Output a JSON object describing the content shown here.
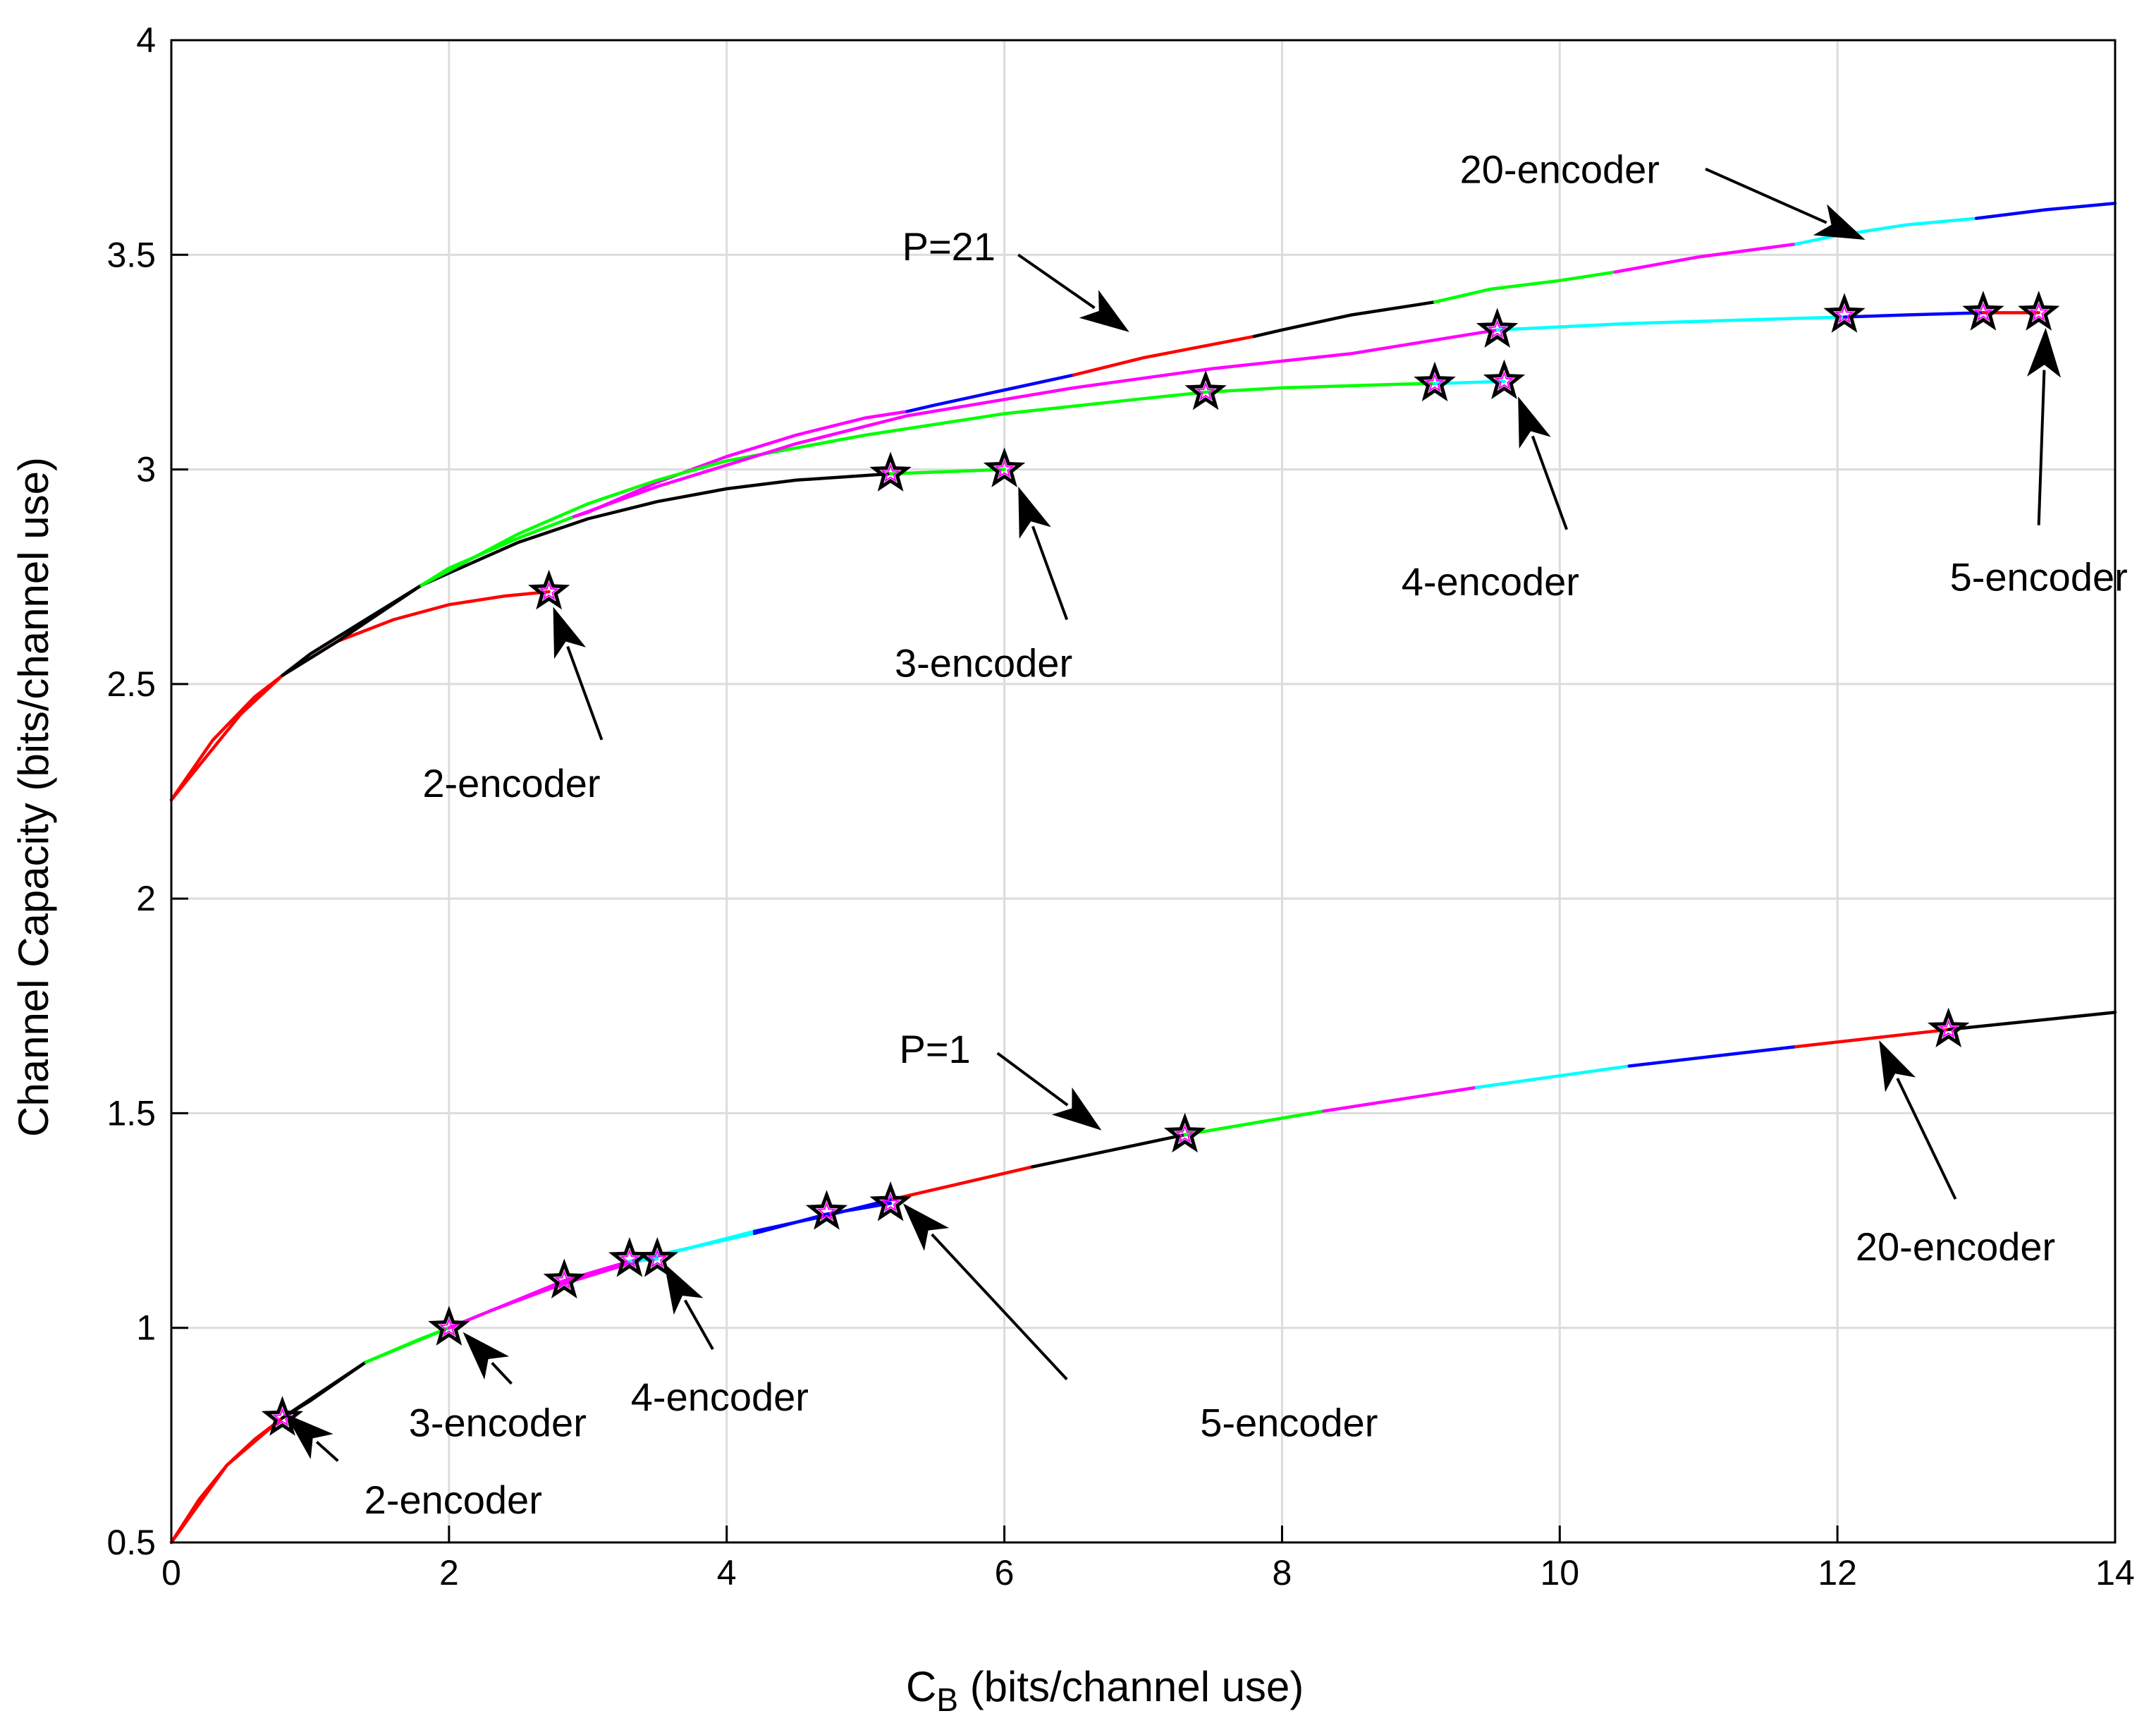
{
  "chart_data": {
    "type": "line",
    "xlabel": "C_B (bits/channel use)",
    "xlabel_main": "C",
    "xlabel_sub": "B",
    "xlabel_rest": " (bits/channel use)",
    "ylabel": "Channel Capacity (bits/channel use)",
    "xlim": [
      0,
      14
    ],
    "ylim": [
      0.5,
      4
    ],
    "xticks": [
      0,
      2,
      4,
      6,
      8,
      10,
      12,
      14
    ],
    "yticks": [
      0.5,
      1,
      1.5,
      2,
      2.5,
      3,
      3.5,
      4
    ],
    "xtick_labels": [
      "0",
      "2",
      "4",
      "6",
      "8",
      "10",
      "12",
      "14"
    ],
    "ytick_labels": [
      "0.5",
      "1",
      "1.5",
      "2",
      "2.5",
      "3",
      "3.5",
      "4"
    ],
    "grid": true,
    "colors": {
      "red": "#ff0000",
      "black": "#000000",
      "green": "#00ff00",
      "magenta": "#ff00ff",
      "cyan": "#00ffff",
      "blue": "#0000ff"
    },
    "groups": [
      {
        "name": "P=21",
        "envelope": {
          "name": "20-encoder envelope (P=21)",
          "x": [
            0,
            0.5,
            0.8,
            1.0,
            1.5,
            1.8,
            2.0,
            2.5,
            2.9,
            3.0,
            3.5,
            4.0,
            4.5,
            5.0,
            5.3,
            5.5,
            6.0,
            6.5,
            7.0,
            7.8,
            8.0,
            8.5,
            9.0,
            9.1,
            9.5,
            10.0,
            10.4,
            11.0,
            11.7,
            12.0,
            12.5,
            13.0,
            13.5,
            14.0
          ],
          "y": [
            2.23,
            2.43,
            2.52,
            2.57,
            2.67,
            2.73,
            2.77,
            2.84,
            2.89,
            2.9,
            2.97,
            3.03,
            3.08,
            3.12,
            3.135,
            3.15,
            3.185,
            3.22,
            3.26,
            3.31,
            3.325,
            3.36,
            3.385,
            3.39,
            3.42,
            3.44,
            3.46,
            3.495,
            3.525,
            3.545,
            3.57,
            3.585,
            3.605,
            3.62
          ],
          "segments": [
            {
              "color": "red",
              "x_end": 0.8
            },
            {
              "color": "black",
              "x_end": 1.8
            },
            {
              "color": "green",
              "x_end": 2.9
            },
            {
              "color": "magenta",
              "x_end": 5.3
            },
            {
              "color": "blue",
              "x_end": 6.5
            },
            {
              "color": "red",
              "x_end": 7.8
            },
            {
              "color": "black",
              "x_end": 9.1
            },
            {
              "color": "green",
              "x_end": 10.4
            },
            {
              "color": "magenta",
              "x_end": 11.7
            },
            {
              "color": "cyan",
              "x_end": 13.0
            },
            {
              "color": "blue",
              "x_end": 14.0
            }
          ]
        },
        "series": [
          {
            "name": "2-encoder (P=21)",
            "x": [
              0,
              0.3,
              0.6,
              0.8,
              1.2,
              1.6,
              2.0,
              2.4,
              2.72
            ],
            "y": [
              2.23,
              2.37,
              2.47,
              2.52,
              2.6,
              2.65,
              2.685,
              2.705,
              2.715
            ],
            "segments": [
              {
                "color": "red",
                "x_end": 2.72
              }
            ],
            "star": {
              "x": 2.72,
              "y": 2.715
            }
          },
          {
            "name": "3-encoder (P=21)",
            "x": [
              0.8,
              1.2,
              1.8,
              2.5,
              3.0,
              3.5,
              4.0,
              4.5,
              5.18,
              5.6,
              6.0
            ],
            "y": [
              2.52,
              2.6,
              2.73,
              2.83,
              2.885,
              2.925,
              2.955,
              2.975,
              2.99,
              2.995,
              3.0
            ],
            "segments": [
              {
                "color": "black",
                "x_end": 5.18
              },
              {
                "color": "green",
                "x_end": 6.0
              }
            ],
            "star": {
              "x": 6.0,
              "y": 3.0
            }
          },
          {
            "name": "4-encoder (P=21)",
            "x": [
              1.8,
              2.5,
              3.0,
              3.5,
              4.0,
              5.0,
              6.0,
              7.0,
              7.45,
              8.0,
              9.0,
              9.1,
              9.6
            ],
            "y": [
              2.73,
              2.85,
              2.92,
              2.975,
              3.02,
              3.08,
              3.13,
              3.165,
              3.18,
              3.19,
              3.2,
              3.2,
              3.205
            ],
            "segments": [
              {
                "color": "green",
                "x_end": 9.1
              },
              {
                "color": "cyan",
                "x_end": 9.6
              }
            ],
            "star": {
              "x": 9.6,
              "y": 3.205
            }
          },
          {
            "name": "5-encoder (P=21)",
            "x": [
              2.9,
              3.5,
              4.5,
              5.3,
              6.5,
              7.5,
              8.5,
              9.55,
              10.5,
              11.5,
              12.05,
              12.5,
              13.05,
              13.45
            ],
            "y": [
              2.89,
              2.96,
              3.06,
              3.125,
              3.19,
              3.235,
              3.27,
              3.325,
              3.34,
              3.35,
              3.355,
              3.36,
              3.365,
              3.365
            ],
            "segments": [
              {
                "color": "magenta",
                "x_end": 9.55
              },
              {
                "color": "cyan",
                "x_end": 12.05
              },
              {
                "color": "blue",
                "x_end": 13.05
              },
              {
                "color": "red",
                "x_end": 13.45
              }
            ],
            "star": {
              "x": 13.45,
              "y": 3.365
            }
          }
        ],
        "intermediate_stars": [
          {
            "x": 5.18,
            "y": 2.99
          },
          {
            "x": 7.45,
            "y": 3.18
          },
          {
            "x": 9.1,
            "y": 3.2
          },
          {
            "x": 9.55,
            "y": 3.325
          },
          {
            "x": 12.05,
            "y": 3.36
          },
          {
            "x": 13.05,
            "y": 3.365
          }
        ]
      },
      {
        "name": "P=1",
        "envelope": {
          "name": "20-encoder envelope (P=1)",
          "x": [
            0,
            0.2,
            0.4,
            0.6,
            0.8,
            1.0,
            1.4,
            1.8,
            2.0,
            2.3,
            2.8,
            3.3,
            3.6,
            4.2,
            4.7,
            5.2,
            6.2,
            7.3,
            8.3,
            9.4,
            10.5,
            11.7,
            12.8,
            14.0
          ],
          "y": [
            0.5,
            0.6,
            0.68,
            0.74,
            0.79,
            0.83,
            0.92,
            0.975,
            1.0,
            1.04,
            1.1,
            1.15,
            1.175,
            1.225,
            1.26,
            1.3,
            1.375,
            1.45,
            1.505,
            1.56,
            1.61,
            1.655,
            1.695,
            1.735
          ],
          "segments": [
            {
              "color": "red",
              "x_end": 0.8
            },
            {
              "color": "black",
              "x_end": 1.4
            },
            {
              "color": "green",
              "x_end": 2.3
            },
            {
              "color": "magenta",
              "x_end": 3.6
            },
            {
              "color": "cyan",
              "x_end": 4.2
            },
            {
              "color": "blue",
              "x_end": 5.2
            },
            {
              "color": "red",
              "x_end": 6.2
            },
            {
              "color": "black",
              "x_end": 7.3
            },
            {
              "color": "green",
              "x_end": 8.3
            },
            {
              "color": "magenta",
              "x_end": 9.4
            },
            {
              "color": "cyan",
              "x_end": 10.5
            },
            {
              "color": "blue",
              "x_end": 11.7
            },
            {
              "color": "red",
              "x_end": 12.8
            },
            {
              "color": "black",
              "x_end": 14.0
            }
          ]
        },
        "series": [
          {
            "name": "2-encoder (P=1)",
            "x": [
              0,
              0.4,
              0.8
            ],
            "y": [
              0.5,
              0.68,
              0.79
            ],
            "segments": [
              {
                "color": "red",
                "x_end": 0.8
              }
            ],
            "star": {
              "x": 0.8,
              "y": 0.79
            }
          },
          {
            "name": "3-encoder (P=1)",
            "x": [
              0.8,
              1.4,
              2.0
            ],
            "y": [
              0.79,
              0.92,
              1.0
            ],
            "segments": [
              {
                "color": "black",
                "x_end": 1.4
              },
              {
                "color": "green",
                "x_end": 2.0
              }
            ],
            "star": {
              "x": 2.0,
              "y": 1.0
            }
          },
          {
            "name": "4-encoder (P=1)",
            "x": [
              2.0,
              2.83,
              3.3,
              3.5
            ],
            "y": [
              1.0,
              1.11,
              1.155,
              1.16
            ],
            "segments": [
              {
                "color": "magenta",
                "x_end": 3.3
              },
              {
                "color": "cyan",
                "x_end": 3.5
              }
            ],
            "star": {
              "x": 3.5,
              "y": 1.16
            }
          },
          {
            "name": "5-encoder (P=1)",
            "x": [
              3.3,
              4.2,
              4.72,
              5.0,
              5.18
            ],
            "y": [
              1.155,
              1.22,
              1.265,
              1.28,
              1.29
            ],
            "segments": [
              {
                "color": "cyan",
                "x_end": 4.2
              },
              {
                "color": "blue",
                "x_end": 5.18
              }
            ],
            "star": {
              "x": 5.18,
              "y": 1.29
            }
          }
        ],
        "intermediate_stars": [
          {
            "x": 2.83,
            "y": 1.11
          },
          {
            "x": 3.3,
            "y": 1.16
          },
          {
            "x": 4.72,
            "y": 1.27
          },
          {
            "x": 7.3,
            "y": 1.45
          },
          {
            "x": 12.8,
            "y": 1.695
          }
        ]
      }
    ],
    "annotations": [
      {
        "text": "20-encoder",
        "text_at": [
          10.0,
          3.7
        ],
        "arrow_from": [
          11.05,
          3.7
        ],
        "arrow_to": [
          12.2,
          3.535
        ]
      },
      {
        "text": "P=21",
        "text_at": [
          5.6,
          3.52
        ],
        "arrow_from": [
          6.1,
          3.5
        ],
        "arrow_to": [
          6.9,
          3.32
        ]
      },
      {
        "text": "2-encoder",
        "text_at": [
          2.45,
          2.27
        ],
        "arrow_from": [
          3.1,
          2.37
        ],
        "arrow_to": [
          2.75,
          2.68
        ]
      },
      {
        "text": "3-encoder",
        "text_at": [
          5.85,
          2.55
        ],
        "arrow_from": [
          6.45,
          2.65
        ],
        "arrow_to": [
          6.1,
          2.96
        ]
      },
      {
        "text": "4-encoder",
        "text_at": [
          9.5,
          2.74
        ],
        "arrow_from": [
          10.05,
          2.86
        ],
        "arrow_to": [
          9.7,
          3.17
        ]
      },
      {
        "text": "5-encoder",
        "text_at": [
          13.45,
          2.75
        ],
        "arrow_from": [
          13.45,
          2.87
        ],
        "arrow_to": [
          13.5,
          3.33
        ]
      },
      {
        "text": "P=1",
        "text_at": [
          5.5,
          1.65
        ],
        "arrow_from": [
          5.95,
          1.64
        ],
        "arrow_to": [
          6.7,
          1.46
        ]
      },
      {
        "text": "20-encoder",
        "text_at": [
          12.85,
          1.19
        ],
        "arrow_from": [
          12.85,
          1.3
        ],
        "arrow_to": [
          12.3,
          1.67
        ]
      },
      {
        "text": "2-encoder",
        "text_at": [
          2.03,
          0.6
        ],
        "arrow_from": [
          1.2,
          0.69
        ],
        "arrow_to": [
          0.82,
          0.8
        ]
      },
      {
        "text": "3-encoder",
        "text_at": [
          2.35,
          0.78
        ],
        "arrow_from": [
          2.45,
          0.87
        ],
        "arrow_to": [
          2.1,
          0.99
        ]
      },
      {
        "text": "4-encoder",
        "text_at": [
          3.95,
          0.84
        ],
        "arrow_from": [
          3.9,
          0.95
        ],
        "arrow_to": [
          3.55,
          1.15
        ]
      },
      {
        "text": "5-encoder",
        "text_at": [
          8.05,
          0.78
        ],
        "arrow_from": [
          6.45,
          0.88
        ],
        "arrow_to": [
          5.27,
          1.29
        ]
      }
    ]
  }
}
